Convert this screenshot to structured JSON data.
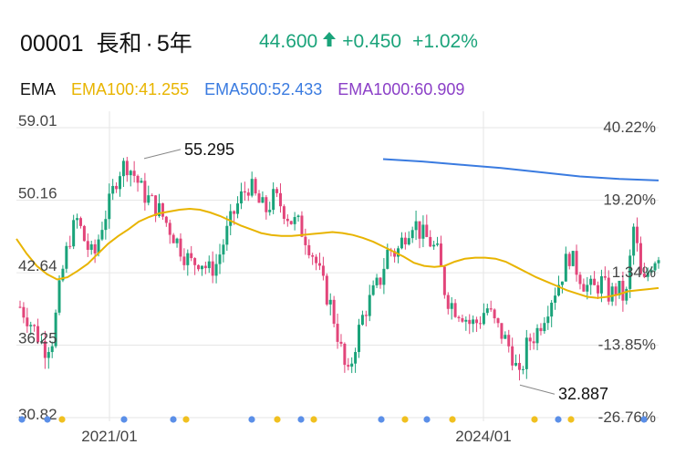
{
  "header": {
    "code": "00001",
    "name": "長和",
    "separator": "·",
    "period": "5年"
  },
  "quote": {
    "price": "44.600",
    "arrow": "↑",
    "change": "+0.450",
    "change_pct": "+1.02%",
    "color": "#1aa37a"
  },
  "ema": {
    "label": "EMA",
    "items": [
      {
        "label": "EMA100:41.255",
        "color": "#e8b400"
      },
      {
        "label": "EMA500:52.433",
        "color": "#3a7be0"
      },
      {
        "label": "EMA1000:60.909",
        "color": "#8b3fc7"
      }
    ]
  },
  "colors": {
    "up": "#1aa37a",
    "down": "#e2457a",
    "ema100": "#e8b400",
    "ema500": "#3a7be0",
    "grid": "#e6e6e6",
    "marker_blue": "#5b8fe8",
    "marker_gold": "#f0c020"
  },
  "chart_data": {
    "type": "candlestick",
    "x_labels": [
      "2021/01",
      "2024/01"
    ],
    "y_ticks_left": [
      "59.01",
      "50.16",
      "42.64",
      "36.25",
      "30.82"
    ],
    "y_ticks_right": [
      "40.22%",
      "19.20%",
      "1.34%",
      "-13.85%",
      "-26.76%"
    ],
    "ylim": [
      30.82,
      59.01
    ],
    "scale": "log",
    "grid": true,
    "annotations": [
      {
        "label": "55.295",
        "value": 55.295,
        "kind": "high"
      },
      {
        "label": "32.887",
        "value": 32.887,
        "kind": "low"
      }
    ],
    "close_series": [
      39.5,
      38.5,
      37.2,
      36.0,
      36.8,
      42.0,
      46.0,
      48.0,
      45.5,
      44.0,
      47.5,
      50.0,
      53.5,
      54.5,
      53.0,
      51.0,
      50.0,
      49.0,
      47.5,
      46.0,
      44.5,
      43.5,
      44.0,
      42.8,
      43.5,
      46.0,
      48.5,
      50.5,
      52.0,
      50.0,
      49.0,
      50.5,
      49.5,
      48.0,
      47.5,
      46.0,
      44.0,
      41.5,
      39.5,
      36.5,
      33.5,
      36.5,
      39.0,
      40.5,
      42.0,
      45.0,
      44.5,
      46.5,
      48.0,
      46.5,
      45.8,
      44.5,
      40.5,
      39.5,
      39.0,
      38.0,
      38.2,
      39.5,
      38.0,
      37.0,
      35.8,
      33.5,
      36.5,
      37.2,
      38.8,
      40.5,
      42.0,
      44.5,
      43.0,
      41.5,
      41.0,
      41.8,
      40.5,
      41.2,
      40.0,
      47.5,
      41.0,
      43.5,
      44.6
    ],
    "ema100_series": [
      46.0,
      44.5,
      43.3,
      42.5,
      42.0,
      42.2,
      42.8,
      43.5,
      44.5,
      45.5,
      46.3,
      47.0,
      47.8,
      48.3,
      48.7,
      48.9,
      49.1,
      49.2,
      49.1,
      48.8,
      48.4,
      47.9,
      47.4,
      47.0,
      46.6,
      46.4,
      46.3,
      46.3,
      46.4,
      46.5,
      46.6,
      46.7,
      46.6,
      46.4,
      46.1,
      45.7,
      45.2,
      44.7,
      44.2,
      43.6,
      43.3,
      43.2,
      43.3,
      43.7,
      44.0,
      44.1,
      44.1,
      44.0,
      43.7,
      43.2,
      42.7,
      42.2,
      41.8,
      41.4,
      41.0,
      40.7,
      40.4,
      40.3,
      40.4,
      40.6,
      40.9,
      41.0,
      41.1,
      41.2
    ],
    "ema500_series": [
      55.0,
      54.7,
      54.3,
      53.9,
      53.4,
      52.9,
      52.6,
      52.433
    ]
  }
}
